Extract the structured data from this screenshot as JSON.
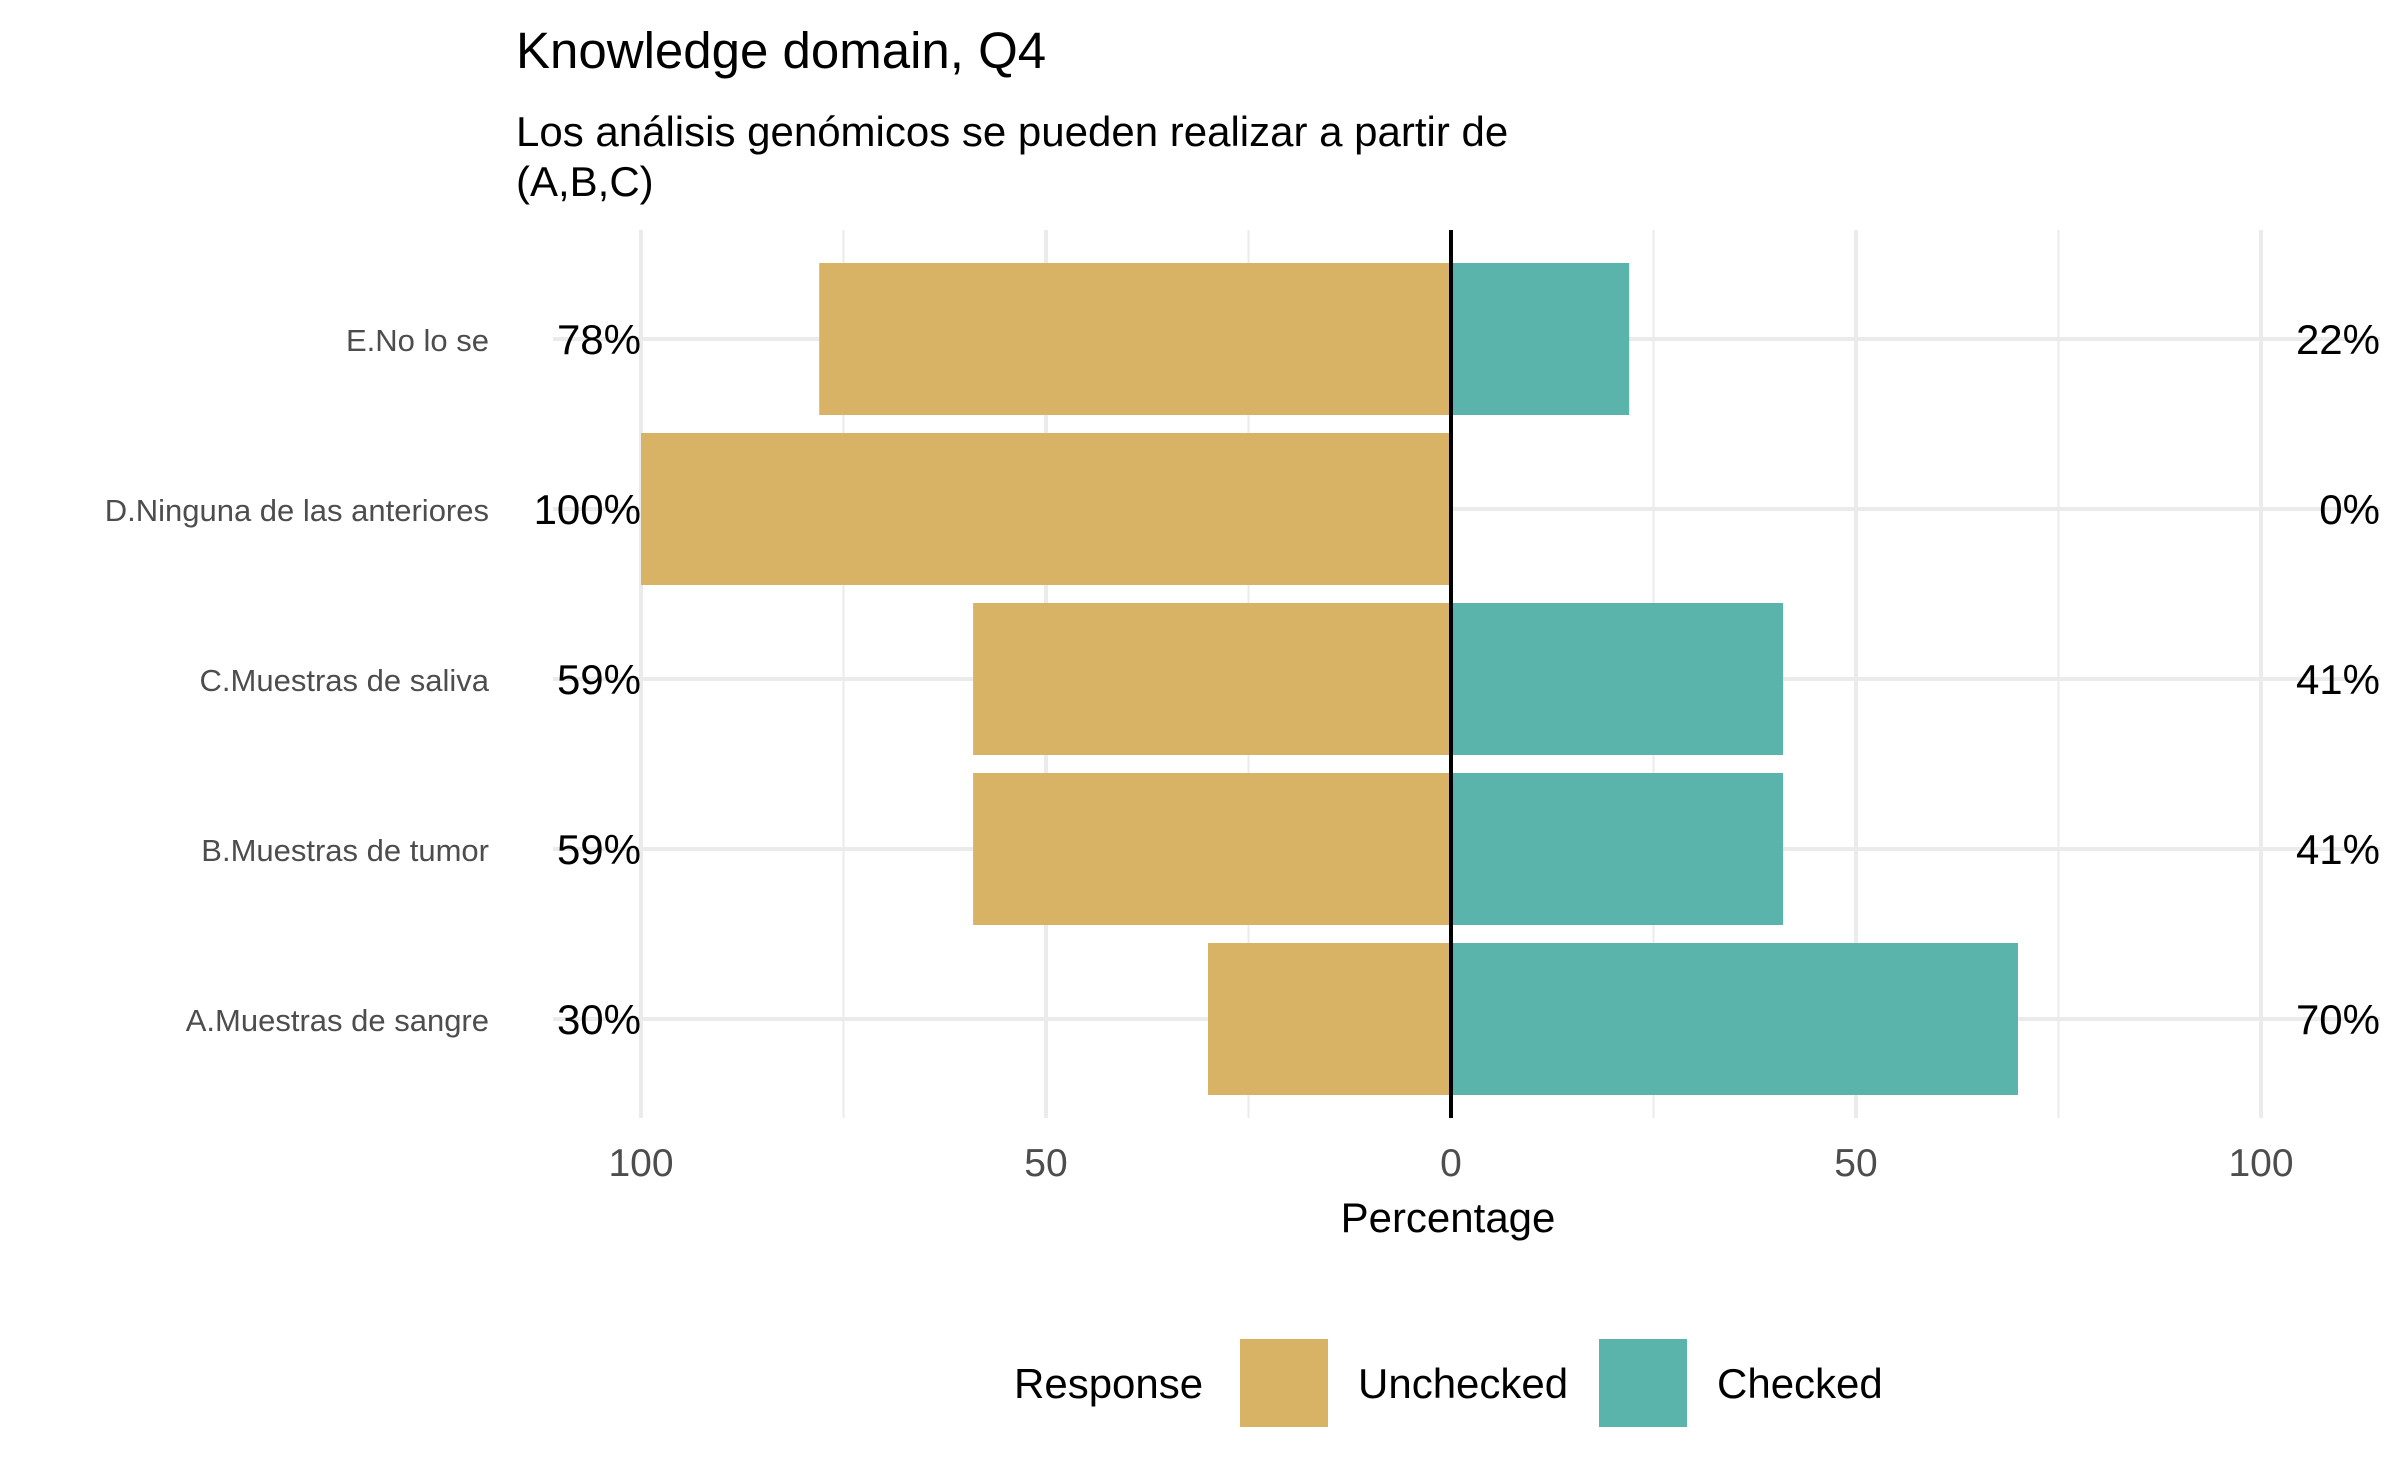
{
  "chart_data": {
    "type": "bar",
    "orientation": "horizontal-diverging",
    "title": "Knowledge domain, Q4",
    "subtitle": "Los análisis genómicos se pueden realizar a partir de\n(A,B,C)",
    "xlabel": "Percentage",
    "ylabel": "",
    "xlim": [
      -100,
      100
    ],
    "x_ticks": [
      -100,
      -50,
      0,
      50,
      100
    ],
    "x_tick_labels": [
      "100",
      "50",
      "0",
      "50",
      "100"
    ],
    "grid": true,
    "legend_position": "bottom",
    "legend_title": "Response",
    "categories": [
      "E.No lo se",
      "D.Ninguna de las anteriores",
      "C.Muestras de saliva",
      "B.Muestras de tumor",
      "A.Muestras de sangre"
    ],
    "series": [
      {
        "name": "Unchecked",
        "color": "#D8B365",
        "direction": "left",
        "values": [
          78,
          100,
          59,
          59,
          30
        ],
        "labels": [
          "78%",
          "100%",
          "59%",
          "59%",
          "30%"
        ]
      },
      {
        "name": "Checked",
        "color": "#5AB4AC",
        "direction": "right",
        "values": [
          22,
          0,
          41,
          41,
          70
        ],
        "labels": [
          "22%",
          "0%",
          "41%",
          "41%",
          "70%"
        ]
      }
    ]
  }
}
